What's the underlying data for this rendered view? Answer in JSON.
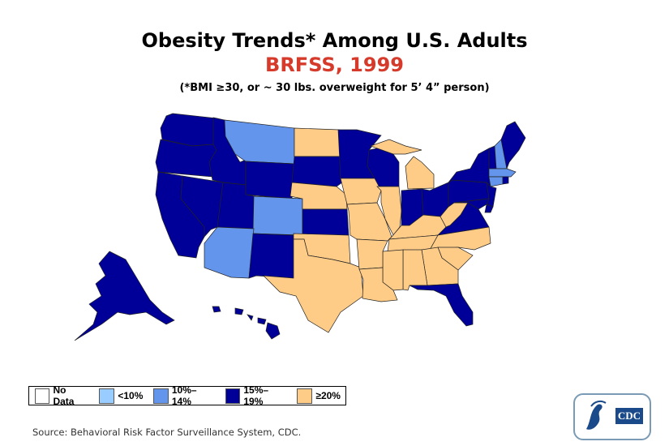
{
  "title": "Obesity Trends* Among U.S. Adults",
  "subtitle": "BRFSS, 1999",
  "note": "(*BMI ≥30, or ~ 30 lbs. overweight for 5’ 4” person)",
  "legend": [
    {
      "key": "none",
      "label": "No Data",
      "color": "#ffffff"
    },
    {
      "key": "lt10",
      "label": "<10%",
      "color": "#99ccff"
    },
    {
      "key": "10to14",
      "label": "10%–14%",
      "color": "#6495ed"
    },
    {
      "key": "15to19",
      "label": "15%–19%",
      "color": "#000099"
    },
    {
      "key": "ge20",
      "label": "≥20%",
      "color": "#ffcc88"
    }
  ],
  "states": {
    "WA": "15to19",
    "OR": "15to19",
    "CA": "15to19",
    "NV": "15to19",
    "ID": "15to19",
    "MT": "10to14",
    "WY": "15to19",
    "UT": "15to19",
    "CO": "10to14",
    "AZ": "10to14",
    "NM": "15to19",
    "ND": "ge20",
    "SD": "15to19",
    "NE": "ge20",
    "KS": "15to19",
    "OK": "ge20",
    "TX": "ge20",
    "MN": "15to19",
    "WI": "15to19",
    "IA": "ge20",
    "MO": "ge20",
    "IL": "ge20",
    "IN": "15to19",
    "OH": "15to19",
    "MI": "ge20",
    "KY": "ge20",
    "WV": "ge20",
    "VA": "15to19",
    "NC": "ge20",
    "TN": "ge20",
    "SC": "ge20",
    "GA": "ge20",
    "AL": "ge20",
    "MS": "ge20",
    "AR": "ge20",
    "LA": "ge20",
    "FL": "15to19",
    "PA": "15to19",
    "NY": "15to19",
    "NJ": "15to19",
    "MD": "15to19",
    "DE": "15to19",
    "VT": "15to19",
    "NH": "10to14",
    "ME": "15to19",
    "MA": "10to14",
    "CT": "10to14",
    "RI": "15to19",
    "AK": "15to19",
    "HI": "15to19"
  },
  "source": "Source: Behavioral Risk Factor Surveillance System, CDC.",
  "logo_text": "CDC"
}
